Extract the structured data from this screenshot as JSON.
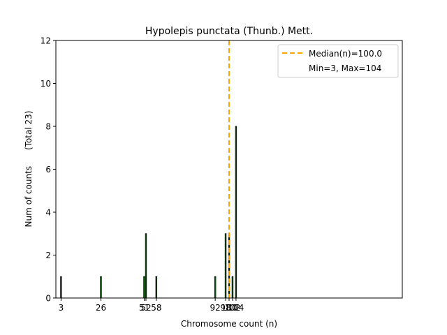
{
  "chart_data": {
    "type": "bar",
    "title": "Hypolepis punctata (Thunb.) Mett.",
    "xlabel": "Chromosome count (n)",
    "ylabel": "Num of counts      (Total 23)",
    "xlim": [
      0,
      200
    ],
    "ylim": [
      0,
      12
    ],
    "yticks": [
      0,
      2,
      4,
      6,
      8,
      10,
      12
    ],
    "xticks": [
      3,
      26,
      51,
      52,
      58,
      92,
      98,
      100,
      102,
      104
    ],
    "x": [
      3,
      26,
      51,
      52,
      58,
      92,
      98,
      100,
      102,
      104
    ],
    "values": [
      1,
      1,
      1,
      3,
      1,
      1,
      3,
      3,
      1,
      8
    ],
    "bar_color": "#1a7a1a",
    "median": 100.0,
    "median_color": "#ffa500",
    "legend": {
      "position": "upper right",
      "entries": [
        "Median(n)=100.0",
        "Min=3, Max=104"
      ]
    },
    "grid": false
  }
}
